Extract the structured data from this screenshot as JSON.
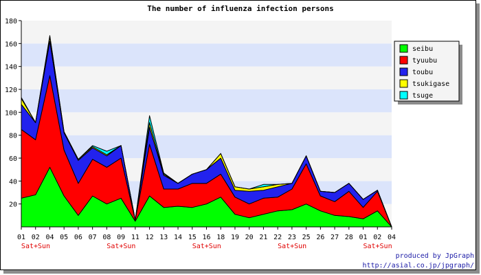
{
  "chart_data": {
    "type": "area",
    "stacked": true,
    "title": "The number of influenza infection persons",
    "x_labels": [
      "01",
      "02",
      "04",
      "05",
      "06",
      "07",
      "08",
      "09",
      "11",
      "12",
      "13",
      "14",
      "15",
      "16",
      "18",
      "19",
      "20",
      "21",
      "22",
      "23",
      "25",
      "26",
      "27",
      "28",
      "01",
      "02",
      "04"
    ],
    "weekend_markers": [
      {
        "index": 0,
        "text": "Sat+Sun"
      },
      {
        "index": 6,
        "text": "Sat+Sun"
      },
      {
        "index": 12,
        "text": "Sat+Sun"
      },
      {
        "index": 18,
        "text": "Sat+Sun"
      },
      {
        "index": 24,
        "text": "Sat+Sun"
      }
    ],
    "ylim": [
      0,
      180
    ],
    "yticks": [
      20,
      40,
      60,
      80,
      100,
      120,
      140,
      160,
      180
    ],
    "series": [
      {
        "name": "seibu",
        "color": "#00ff00",
        "values": [
          25,
          28,
          52,
          27,
          10,
          27,
          20,
          25,
          5,
          27,
          17,
          18,
          17,
          20,
          26,
          11,
          8,
          11,
          14,
          15,
          20,
          14,
          10,
          9,
          7,
          14,
          0
        ]
      },
      {
        "name": "tyuubu",
        "color": "#ff0000",
        "values": [
          60,
          48,
          80,
          40,
          28,
          32,
          32,
          35,
          1,
          45,
          16,
          15,
          21,
          18,
          20,
          15,
          12,
          14,
          12,
          18,
          35,
          13,
          12,
          22,
          10,
          17,
          0
        ]
      },
      {
        "name": "toubu",
        "color": "#2222ee",
        "values": [
          22,
          15,
          30,
          15,
          20,
          10,
          10,
          11,
          0,
          15,
          12,
          5,
          8,
          12,
          14,
          6,
          11,
          7,
          9,
          5,
          7,
          4,
          8,
          7,
          7,
          1,
          0
        ]
      },
      {
        "name": "tsukigase",
        "color": "#ffff00",
        "values": [
          5,
          0,
          4,
          1,
          1,
          1,
          1,
          0,
          0,
          4,
          1,
          0,
          0,
          0,
          4,
          3,
          2,
          3,
          2,
          0,
          0,
          0,
          0,
          0,
          0,
          0,
          0
        ]
      },
      {
        "name": "tsuge",
        "color": "#00ffff",
        "values": [
          1,
          0,
          1,
          0,
          0,
          1,
          3,
          0,
          0,
          6,
          1,
          0,
          0,
          0,
          0,
          0,
          0,
          2,
          0,
          0,
          0,
          0,
          0,
          0,
          0,
          0,
          0
        ]
      }
    ],
    "grid": true,
    "legend_position": "top-right"
  },
  "credits": {
    "line1": "produced by JpGraph",
    "line2": "http://asial.co.jp/jpgraph/"
  }
}
